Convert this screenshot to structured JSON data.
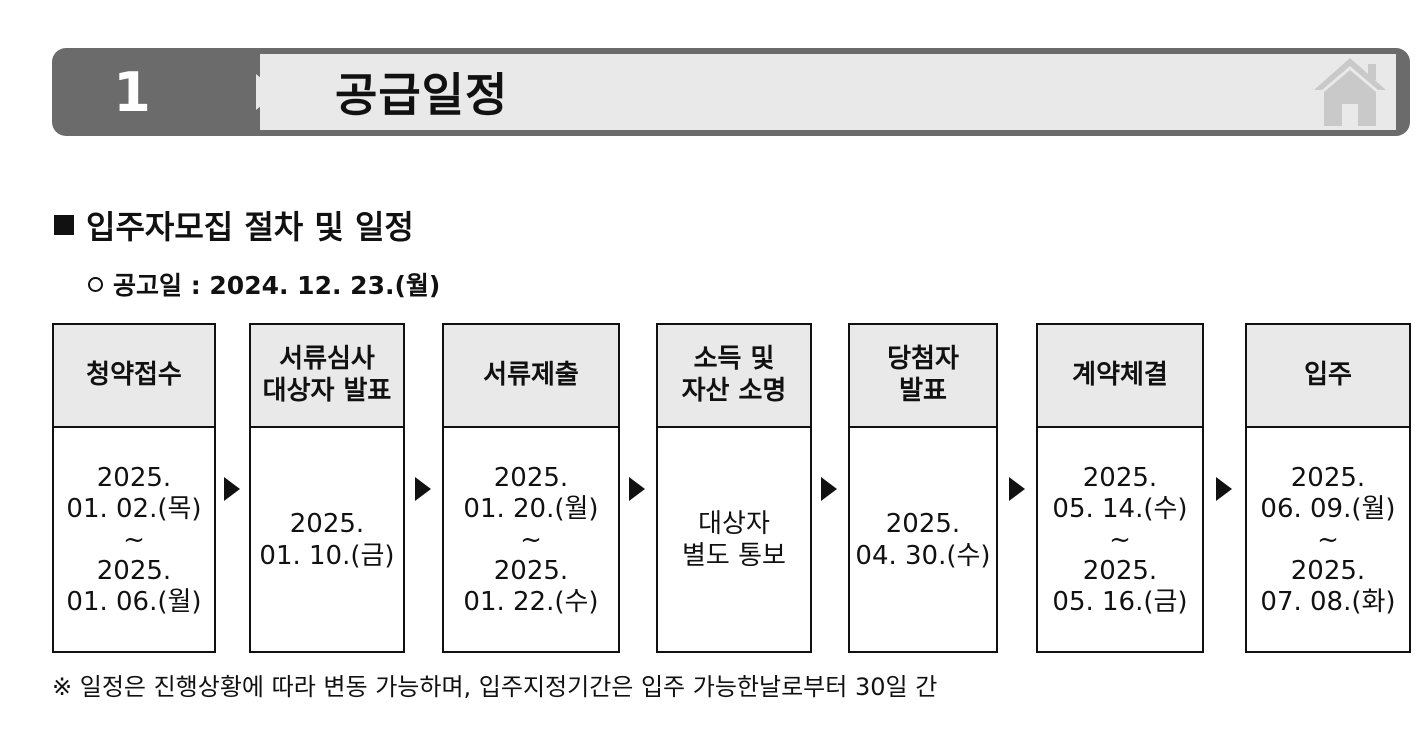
{
  "section": {
    "number": "1",
    "title": "공급일정",
    "icon": "home-icon"
  },
  "subtitle": "입주자모집 절차 및 일정",
  "notice_date": "공고일 : 2024. 12. 23.(월)",
  "steps": [
    {
      "title": "청약접수",
      "date": "2025.\n01. 02.(목)\n~\n2025.\n01. 06.(월)"
    },
    {
      "title": "서류심사\n대상자 발표",
      "date": "2025.\n01. 10.(금)"
    },
    {
      "title": "서류제출",
      "date": "2025.\n01. 20.(월)\n~\n2025.\n01. 22.(수)"
    },
    {
      "title": "소득 및\n자산 소명",
      "date": "대상자\n별도 통보"
    },
    {
      "title": "당첨자\n발표",
      "date": "2025.\n04. 30.(수)"
    },
    {
      "title": "계약체결",
      "date": "2025.\n05. 14.(수)\n~\n2025.\n05. 16.(금)"
    },
    {
      "title": "입주",
      "date": "2025.\n06. 09.(월)\n~\n2025.\n07. 08.(화)"
    }
  ],
  "footnote": "※ 일정은 진행상황에 따라 변동 가능하며, 입주지정기간은 입주 가능한날로부터 30일 간"
}
